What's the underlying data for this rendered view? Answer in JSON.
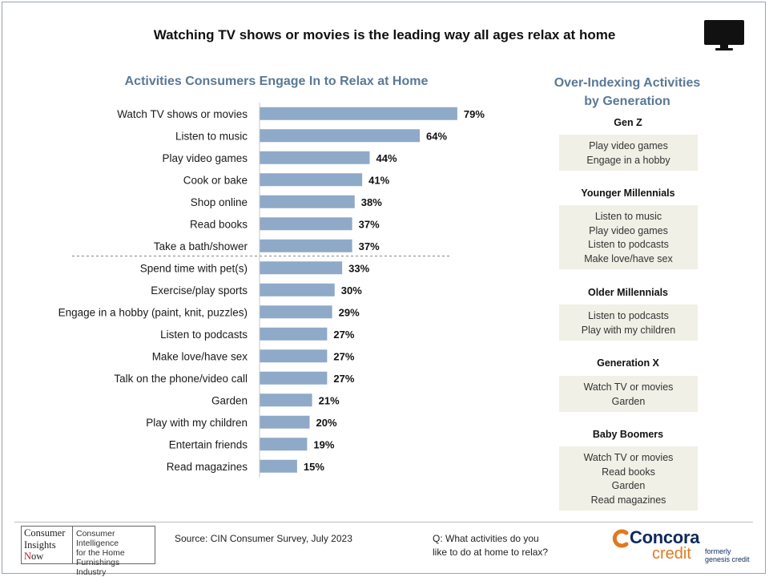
{
  "title": "Watching TV shows or movies is the leading way all ages relax at home",
  "chart_data": {
    "type": "bar",
    "orientation": "horizontal",
    "title": "Activities Consumers Engage In to Relax at Home",
    "categories": [
      "Watch TV shows or movies",
      "Listen to music",
      "Play video games",
      "Cook or bake",
      "Shop online",
      "Read books",
      "Take a bath/shower",
      "Spend time with pet(s)",
      "Exercise/play sports",
      "Engage in a hobby (paint, knit, puzzles)",
      "Listen to podcasts",
      "Make love/have sex",
      "Talk on the phone/video call",
      "Garden",
      "Play with my children",
      "Entertain friends",
      "Read magazines"
    ],
    "values": [
      79,
      64,
      44,
      41,
      38,
      37,
      37,
      33,
      30,
      29,
      27,
      27,
      27,
      21,
      20,
      19,
      15
    ],
    "value_labels": [
      "79%",
      "64%",
      "44%",
      "41%",
      "38%",
      "37%",
      "37%",
      "33%",
      "30%",
      "29%",
      "27%",
      "27%",
      "27%",
      "21%",
      "20%",
      "19%",
      "15%"
    ],
    "unit": "%",
    "divider_after_index": 6,
    "bar_color": "#8fa9c8",
    "grid": false
  },
  "right_panel": {
    "title_line1": "Over-Indexing Activities",
    "title_line2": "by Generation",
    "generations": [
      {
        "name": "Gen Z",
        "items": [
          "Play video games",
          "Engage in a hobby"
        ]
      },
      {
        "name": "Younger Millennials",
        "items": [
          "Listen to music",
          "Play video games",
          "Listen to podcasts",
          "Make love/have sex"
        ]
      },
      {
        "name": "Older Millennials",
        "items": [
          "Listen to podcasts",
          "Play with my children"
        ]
      },
      {
        "name": "Generation X",
        "items": [
          "Watch TV or movies",
          "Garden"
        ]
      },
      {
        "name": "Baby Boomers",
        "items": [
          "Watch TV or movies",
          "Read books",
          "Garden",
          "Read magazines"
        ]
      }
    ],
    "box_color": "#f0f0e6"
  },
  "footer": {
    "cin_logo": {
      "line1": "Consumer",
      "line2": "Insights",
      "line3_initial": "N",
      "line3_rest": "ow",
      "tagline1": "Consumer Intelligence",
      "tagline2": "for the Home",
      "tagline3": "Furnishings Industry"
    },
    "source": "Source: CIN Consumer Survey, July 2023",
    "question_line1": "Q: What activities do you",
    "question_line2": "like to do at home to relax?",
    "brand_name": "Concora",
    "brand_sub": "credit",
    "formerly_line1": "formerly",
    "formerly_line2": "genesis credit"
  },
  "icons": {
    "tv": "tv-icon",
    "brand_mark": "concora-mark-icon"
  },
  "colors": {
    "accent_title": "#5a7896",
    "brand_navy": "#0f2a5c",
    "brand_orange": "#e07a1f"
  }
}
